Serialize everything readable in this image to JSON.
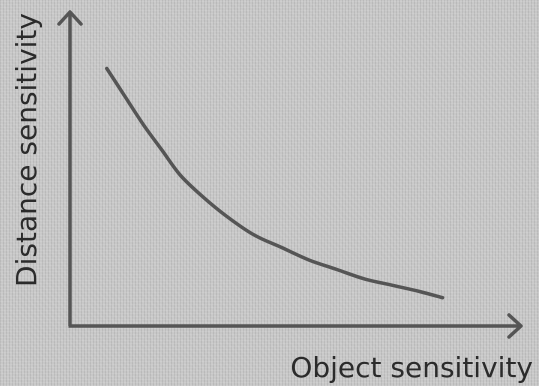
{
  "chart_data": {
    "type": "line",
    "title": "",
    "xlabel": "Object sensitivity",
    "ylabel": "Distance sensitivity",
    "grid": false,
    "legend": "none",
    "axis_color": "#555555",
    "line_color": "#555555",
    "background_color": "#c7c7c7",
    "series": [
      {
        "x": [
          0.08,
          0.12,
          0.16,
          0.2,
          0.24,
          0.29,
          0.34,
          0.4,
          0.46,
          0.52,
          0.58,
          0.64,
          0.7,
          0.76,
          0.81
        ],
        "y": [
          0.82,
          0.73,
          0.64,
          0.56,
          0.48,
          0.41,
          0.35,
          0.29,
          0.25,
          0.21,
          0.18,
          0.15,
          0.13,
          0.11,
          0.09
        ]
      }
    ]
  }
}
